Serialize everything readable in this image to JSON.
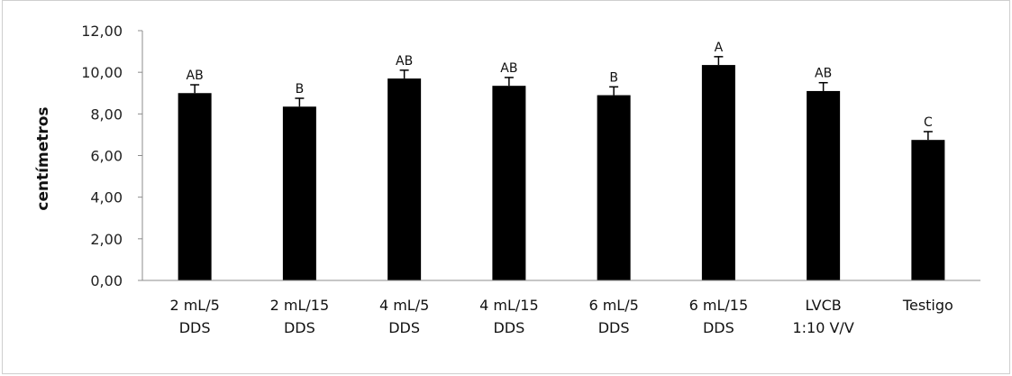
{
  "chart_data": {
    "type": "bar",
    "title": "",
    "xlabel": "",
    "ylabel": "centímetros",
    "ylim": [
      0,
      12
    ],
    "y_ticks": [
      "0,00",
      "2,00",
      "4,00",
      "6,00",
      "8,00",
      "10,00",
      "12,00"
    ],
    "grid": false,
    "legend": "none",
    "bar_color": "#000000",
    "categories": [
      [
        "2 mL/5",
        "DDS"
      ],
      [
        "2 mL/15",
        "DDS"
      ],
      [
        "4 mL/5",
        "DDS"
      ],
      [
        "4 mL/15",
        "DDS"
      ],
      [
        "6 mL/5",
        "DDS"
      ],
      [
        "6 mL/15",
        "DDS"
      ],
      [
        "LVCB",
        "1:10 V/V"
      ],
      [
        "Testigo"
      ]
    ],
    "values": [
      9.0,
      8.35,
      9.7,
      9.35,
      8.9,
      10.35,
      9.1,
      6.75
    ],
    "error": [
      0.4,
      0.4,
      0.4,
      0.4,
      0.4,
      0.4,
      0.4,
      0.4
    ],
    "significance_labels": [
      "AB",
      "B",
      "AB",
      "AB",
      "B",
      "A",
      "AB",
      "C"
    ]
  }
}
